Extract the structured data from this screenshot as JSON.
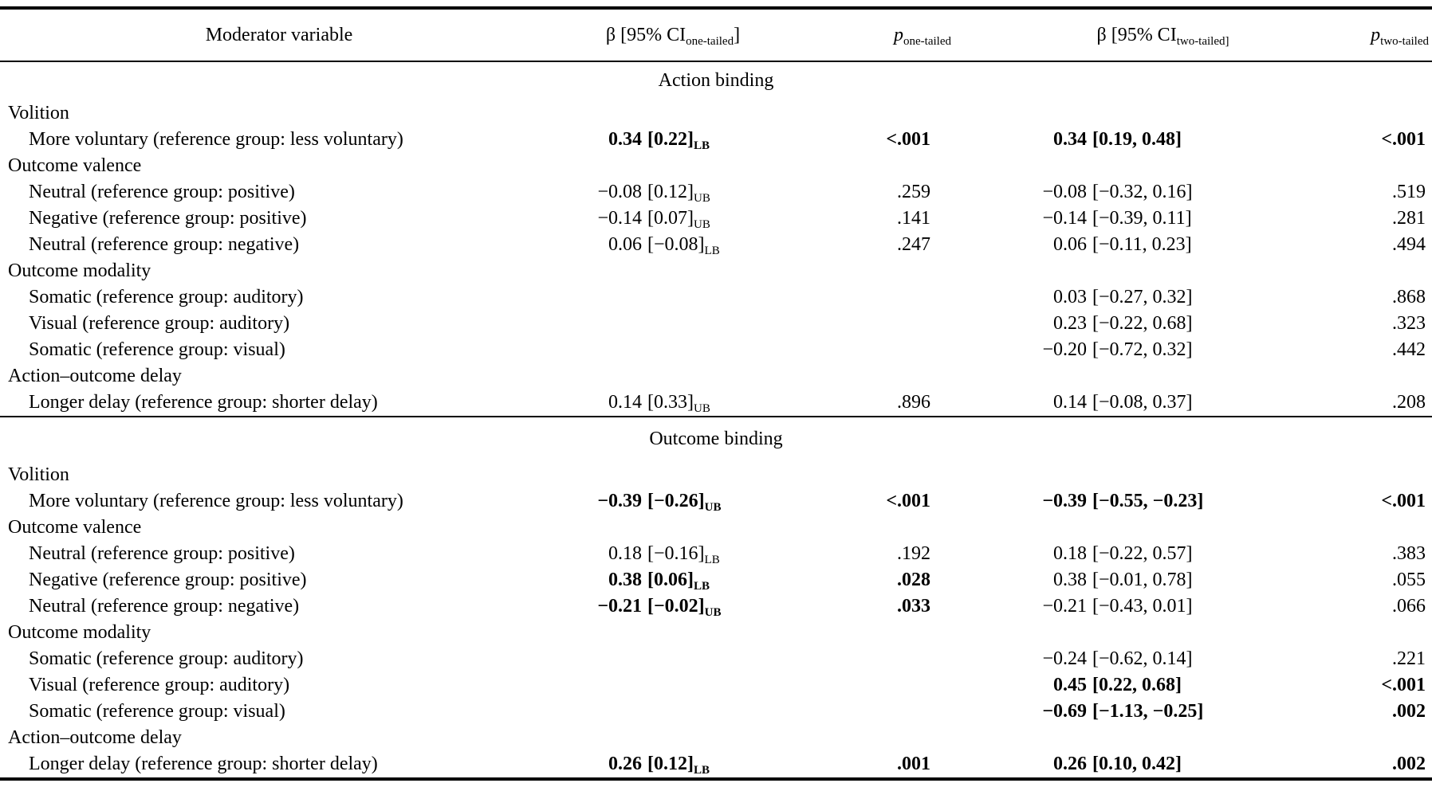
{
  "document": {
    "headers": {
      "moderator": "Moderator variable",
      "beta_one": {
        "pre": "β [95% CI",
        "sub": "one-tailed",
        "post": "]"
      },
      "p_one": {
        "pre": "p",
        "sub": "one-tailed",
        "post": ""
      },
      "beta_two": {
        "pre": "β [95% CI",
        "sub": "two-tailed]",
        "post": ""
      },
      "p_two": {
        "pre": "p",
        "sub": "two-tailed",
        "post": ""
      }
    },
    "sections": [
      {
        "title": "Action binding",
        "rows": [
          {
            "group": "Volition"
          },
          {
            "label": "More voluntary (reference group: less voluntary)",
            "beta1": "0.34",
            "ci1": "[0.22]",
            "sub1": "LB",
            "p1": "<.001",
            "b1": true,
            "beta2": "0.34",
            "ci2": "[0.19, 0.48]",
            "p2": "<.001",
            "b2": true
          },
          {
            "group": "Outcome valence"
          },
          {
            "label": "Neutral (reference group: positive)",
            "beta1": "−0.08",
            "ci1": "[0.12]",
            "sub1": "UB",
            "p1": ".259",
            "b1": false,
            "beta2": "−0.08",
            "ci2": "[−0.32, 0.16]",
            "p2": ".519",
            "b2": false
          },
          {
            "label": "Negative (reference group: positive)",
            "beta1": "−0.14",
            "ci1": "[0.07]",
            "sub1": "UB",
            "p1": ".141",
            "b1": false,
            "beta2": "−0.14",
            "ci2": "[−0.39, 0.11]",
            "p2": ".281",
            "b2": false
          },
          {
            "label": "Neutral (reference group: negative)",
            "beta1": "0.06",
            "ci1": "[−0.08]",
            "sub1": "LB",
            "p1": ".247",
            "b1": false,
            "beta2": "0.06",
            "ci2": "[−0.11, 0.23]",
            "p2": ".494",
            "b2": false
          },
          {
            "group": "Outcome modality"
          },
          {
            "label": "Somatic (reference group: auditory)",
            "beta1": "",
            "ci1": "",
            "sub1": "",
            "p1": "",
            "b1": false,
            "beta2": "0.03",
            "ci2": "[−0.27, 0.32]",
            "p2": ".868",
            "b2": false
          },
          {
            "label": "Visual (reference group: auditory)",
            "beta1": "",
            "ci1": "",
            "sub1": "",
            "p1": "",
            "b1": false,
            "beta2": "0.23",
            "ci2": "[−0.22, 0.68]",
            "p2": ".323",
            "b2": false
          },
          {
            "label": "Somatic (reference group: visual)",
            "beta1": "",
            "ci1": "",
            "sub1": "",
            "p1": "",
            "b1": false,
            "beta2": "−0.20",
            "ci2": "[−0.72, 0.32]",
            "p2": ".442",
            "b2": false
          },
          {
            "group": "Action–outcome delay"
          },
          {
            "label": "Longer delay (reference group: shorter delay)",
            "beta1": "0.14",
            "ci1": "[0.33]",
            "sub1": "UB",
            "p1": ".896",
            "b1": false,
            "beta2": "0.14",
            "ci2": "[−0.08, 0.37]",
            "p2": ".208",
            "b2": false
          }
        ]
      },
      {
        "title": "Outcome binding",
        "rows": [
          {
            "group": "Volition"
          },
          {
            "label": "More voluntary (reference group: less voluntary)",
            "beta1": "−0.39",
            "ci1": "[−0.26]",
            "sub1": "UB",
            "p1": "<.001",
            "b1": true,
            "beta2": "−0.39",
            "ci2": "[−0.55, −0.23]",
            "p2": "<.001",
            "b2": true
          },
          {
            "group": "Outcome valence"
          },
          {
            "label": "Neutral (reference group: positive)",
            "beta1": "0.18",
            "ci1": "[−0.16]",
            "sub1": "LB",
            "p1": ".192",
            "b1": false,
            "beta2": "0.18",
            "ci2": "[−0.22, 0.57]",
            "p2": ".383",
            "b2": false
          },
          {
            "label": "Negative (reference group: positive)",
            "beta1": "0.38",
            "ci1": "[0.06]",
            "sub1": "LB",
            "p1": ".028",
            "b1": true,
            "beta2": "0.38",
            "ci2": "[−0.01, 0.78]",
            "p2": ".055",
            "b2": false
          },
          {
            "label": "Neutral (reference group: negative)",
            "beta1": "−0.21",
            "ci1": "[−0.02]",
            "sub1": "UB",
            "p1": ".033",
            "b1": true,
            "beta2": "−0.21",
            "ci2": "[−0.43, 0.01]",
            "p2": ".066",
            "b2": false
          },
          {
            "group": "Outcome modality"
          },
          {
            "label": "Somatic (reference group: auditory)",
            "beta1": "",
            "ci1": "",
            "sub1": "",
            "p1": "",
            "b1": false,
            "beta2": "−0.24",
            "ci2": "[−0.62, 0.14]",
            "p2": ".221",
            "b2": false
          },
          {
            "label": "Visual (reference group: auditory)",
            "beta1": "",
            "ci1": "",
            "sub1": "",
            "p1": "",
            "b1": false,
            "beta2": "0.45",
            "ci2": "[0.22, 0.68]",
            "p2": "<.001",
            "b2": true
          },
          {
            "label": "Somatic (reference group: visual)",
            "beta1": "",
            "ci1": "",
            "sub1": "",
            "p1": "",
            "b1": false,
            "beta2": "−0.69",
            "ci2": "[−1.13, −0.25]",
            "p2": ".002",
            "b2": true
          },
          {
            "group": "Action–outcome delay"
          },
          {
            "label": "Longer delay (reference group: shorter delay)",
            "beta1": "0.26",
            "ci1": "[0.12]",
            "sub1": "LB",
            "p1": ".001",
            "b1": true,
            "beta2": "0.26",
            "ci2": "[0.10, 0.42]",
            "p2": ".002",
            "b2": true
          }
        ]
      }
    ]
  }
}
